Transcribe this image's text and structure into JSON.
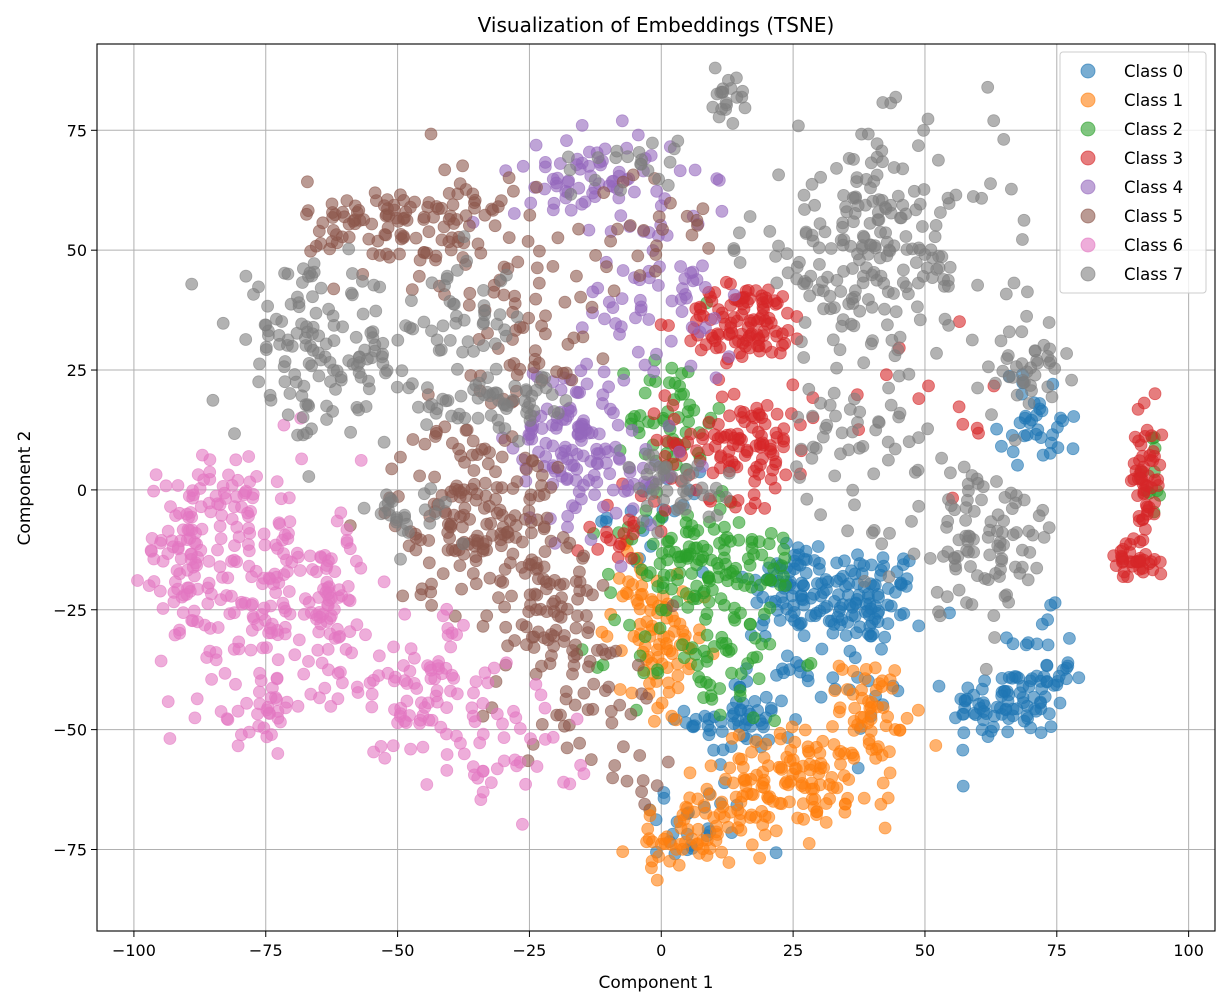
{
  "chart_data": {
    "type": "scatter",
    "title": "Visualization of Embeddings (TSNE)",
    "xlabel": "Component 1",
    "ylabel": "Component 2",
    "xlim": [
      -107,
      105
    ],
    "ylim": [
      -92,
      93
    ],
    "xticks": [
      -100,
      -75,
      -50,
      -25,
      0,
      25,
      50,
      75,
      100
    ],
    "yticks": [
      -75,
      -50,
      -25,
      0,
      25,
      50,
      75
    ],
    "xtick_labels": [
      "−100",
      "−75",
      "−50",
      "−25",
      "0",
      "25",
      "50",
      "75",
      "100"
    ],
    "ytick_labels": [
      "−75",
      "−50",
      "−25",
      "0",
      "25",
      "50",
      "75"
    ],
    "grid": true,
    "legend_position": "top-right",
    "marker_alpha": 0.6,
    "series": [
      {
        "name": "Class 0",
        "color": "#1f77b4",
        "clusters": [
          {
            "cx": 38,
            "cy": -22,
            "sx": 6,
            "sy": 5,
            "n": 90
          },
          {
            "cx": 24,
            "cy": -20,
            "sx": 4,
            "sy": 6,
            "n": 60
          },
          {
            "cx": 65,
            "cy": -45,
            "sx": 5,
            "sy": 4,
            "n": 70
          },
          {
            "cx": 72,
            "cy": -38,
            "sx": 3,
            "sy": 6,
            "n": 35
          },
          {
            "cx": 15,
            "cy": -48,
            "sx": 5,
            "sy": 4,
            "n": 55
          },
          {
            "cx": 72,
            "cy": 15,
            "sx": 4,
            "sy": 5,
            "n": 35
          },
          {
            "cx": 30,
            "cy": -35,
            "sx": 8,
            "sy": 8,
            "n": 50
          },
          {
            "cx": 5,
            "cy": -70,
            "sx": 6,
            "sy": 5,
            "n": 25
          },
          {
            "cx": 0,
            "cy": -5,
            "sx": 5,
            "sy": 4,
            "n": 20
          }
        ]
      },
      {
        "name": "Class 1",
        "color": "#ff7f0e",
        "clusters": [
          {
            "cx": 28,
            "cy": -60,
            "sx": 8,
            "sy": 5,
            "n": 110
          },
          {
            "cx": 12,
            "cy": -68,
            "sx": 5,
            "sy": 5,
            "n": 60
          },
          {
            "cx": 40,
            "cy": -45,
            "sx": 3,
            "sy": 5,
            "n": 50
          },
          {
            "cx": 0,
            "cy": -35,
            "sx": 4,
            "sy": 8,
            "n": 70
          },
          {
            "cx": -5,
            "cy": -20,
            "sx": 3,
            "sy": 5,
            "n": 25
          },
          {
            "cx": 2,
            "cy": -74,
            "sx": 4,
            "sy": 3,
            "n": 25
          }
        ]
      },
      {
        "name": "Class 2",
        "color": "#2ca02c",
        "clusters": [
          {
            "cx": 5,
            "cy": -15,
            "sx": 7,
            "sy": 6,
            "n": 100
          },
          {
            "cx": 2,
            "cy": 15,
            "sx": 4,
            "sy": 7,
            "n": 55
          },
          {
            "cx": 10,
            "cy": -35,
            "sx": 8,
            "sy": 7,
            "n": 60
          },
          {
            "cx": 18,
            "cy": -15,
            "sx": 4,
            "sy": 6,
            "n": 30
          },
          {
            "cx": 93,
            "cy": 0,
            "sx": 1.5,
            "sy": 8,
            "n": 10
          }
        ]
      },
      {
        "name": "Class 3",
        "color": "#d62728",
        "clusters": [
          {
            "cx": 16,
            "cy": 35,
            "sx": 6,
            "sy": 4,
            "n": 110
          },
          {
            "cx": 15,
            "cy": 10,
            "sx": 7,
            "sy": 6,
            "n": 120
          },
          {
            "cx": 92,
            "cy": 2,
            "sx": 1.5,
            "sy": 7,
            "n": 60
          },
          {
            "cx": 89,
            "cy": -15,
            "sx": 2.5,
            "sy": 2,
            "n": 30
          },
          {
            "cx": -8,
            "cy": -8,
            "sx": 4,
            "sy": 4,
            "n": 20
          },
          {
            "cx": 55,
            "cy": 15,
            "sx": 8,
            "sy": 8,
            "n": 12
          }
        ]
      },
      {
        "name": "Class 4",
        "color": "#9467bd",
        "clusters": [
          {
            "cx": -18,
            "cy": 10,
            "sx": 5,
            "sy": 9,
            "n": 110
          },
          {
            "cx": -12,
            "cy": 65,
            "sx": 8,
            "sy": 5,
            "n": 70
          },
          {
            "cx": 0,
            "cy": 40,
            "sx": 7,
            "sy": 10,
            "n": 65
          },
          {
            "cx": -5,
            "cy": 5,
            "sx": 5,
            "sy": 5,
            "n": 30
          }
        ]
      },
      {
        "name": "Class 5",
        "color": "#8c564b",
        "clusters": [
          {
            "cx": -35,
            "cy": -5,
            "sx": 8,
            "sy": 10,
            "n": 180
          },
          {
            "cx": -55,
            "cy": 55,
            "sx": 6,
            "sy": 5,
            "n": 70
          },
          {
            "cx": -38,
            "cy": 55,
            "sx": 5,
            "sy": 7,
            "n": 60
          },
          {
            "cx": -25,
            "cy": 35,
            "sx": 6,
            "sy": 10,
            "n": 60
          },
          {
            "cx": -20,
            "cy": -30,
            "sx": 8,
            "sy": 10,
            "n": 90
          },
          {
            "cx": 0,
            "cy": 55,
            "sx": 6,
            "sy": 6,
            "n": 25
          },
          {
            "cx": -10,
            "cy": -50,
            "sx": 6,
            "sy": 6,
            "n": 25
          }
        ]
      },
      {
        "name": "Class 6",
        "color": "#e377c2",
        "clusters": [
          {
            "cx": -90,
            "cy": -15,
            "sx": 4,
            "sy": 10,
            "n": 90
          },
          {
            "cx": -75,
            "cy": -20,
            "sx": 5,
            "sy": 12,
            "n": 110
          },
          {
            "cx": -62,
            "cy": -25,
            "sx": 4,
            "sy": 10,
            "n": 70
          },
          {
            "cx": -75,
            "cy": -45,
            "sx": 6,
            "sy": 4,
            "n": 40
          },
          {
            "cx": -45,
            "cy": -42,
            "sx": 7,
            "sy": 8,
            "n": 80
          },
          {
            "cx": -30,
            "cy": -55,
            "sx": 7,
            "sy": 6,
            "n": 40
          },
          {
            "cx": -82,
            "cy": 0,
            "sx": 5,
            "sy": 4,
            "n": 30
          }
        ]
      },
      {
        "name": "Class 7",
        "color": "#7f7f7f",
        "clusters": [
          {
            "cx": 40,
            "cy": 50,
            "sx": 12,
            "sy": 12,
            "n": 220
          },
          {
            "cx": -65,
            "cy": 28,
            "sx": 8,
            "sy": 9,
            "n": 130
          },
          {
            "cx": -40,
            "cy": 35,
            "sx": 7,
            "sy": 6,
            "n": 50
          },
          {
            "cx": -30,
            "cy": 18,
            "sx": 8,
            "sy": 3,
            "n": 60
          },
          {
            "cx": 60,
            "cy": -10,
            "sx": 8,
            "sy": 8,
            "n": 100
          },
          {
            "cx": 70,
            "cy": 25,
            "sx": 3,
            "sy": 4,
            "n": 40
          },
          {
            "cx": 12,
            "cy": 82,
            "sx": 2,
            "sy": 2,
            "n": 20
          },
          {
            "cx": 3,
            "cy": 0,
            "sx": 4,
            "sy": 4,
            "n": 40
          },
          {
            "cx": 35,
            "cy": 10,
            "sx": 8,
            "sy": 8,
            "n": 50
          },
          {
            "cx": -48,
            "cy": -5,
            "sx": 4,
            "sy": 3,
            "n": 25
          },
          {
            "cx": -5,
            "cy": 68,
            "sx": 5,
            "sy": 4,
            "n": 20
          }
        ]
      }
    ]
  }
}
